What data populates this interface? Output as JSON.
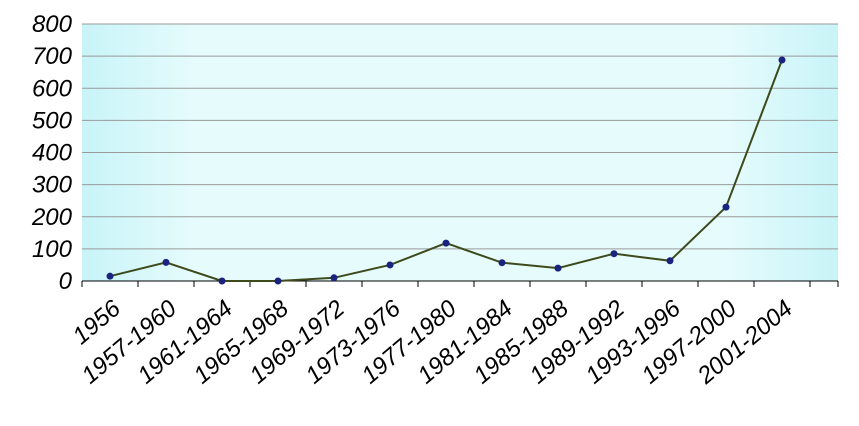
{
  "chart_data": {
    "type": "line",
    "categories": [
      "1956",
      "1957-1960",
      "1961-1964",
      "1965-1968",
      "1969-1972",
      "1973-1976",
      "1977-1980",
      "1981-1984",
      "1985-1988",
      "1989-1992",
      "1993-1996",
      "1997-2000",
      "2001-2004"
    ],
    "series": [
      {
        "values": [
          15,
          58,
          0,
          0,
          10,
          50,
          118,
          57,
          40,
          85,
          63,
          230,
          688
        ],
        "color": "#3e4a1c",
        "marker_color": "#1a237e"
      }
    ],
    "ylim": [
      0,
      800
    ],
    "yticks": [
      0,
      100,
      200,
      300,
      400,
      500,
      600,
      700,
      800
    ],
    "grid": true
  }
}
